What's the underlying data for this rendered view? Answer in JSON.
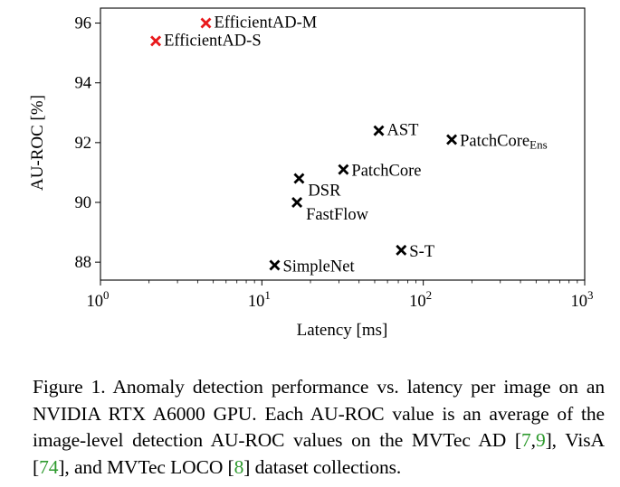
{
  "chart_data": {
    "type": "scatter",
    "xlabel": "Latency [ms]",
    "ylabel": "AU-ROC [%]",
    "xscale": "log",
    "xlim": [
      1,
      1000
    ],
    "ylim": [
      87.4,
      96.5
    ],
    "x_ticks": [
      {
        "value": 1,
        "base": "10",
        "exp": "0"
      },
      {
        "value": 10,
        "base": "10",
        "exp": "1"
      },
      {
        "value": 100,
        "base": "10",
        "exp": "2"
      },
      {
        "value": 1000,
        "base": "10",
        "exp": "3"
      }
    ],
    "y_ticks": [
      88,
      90,
      92,
      94,
      96
    ],
    "grid": false,
    "points": [
      {
        "label": "EfficientAD-M",
        "sub": "",
        "x": 4.5,
        "y": 96.0,
        "color": "#e8191c",
        "anchor": "right-up"
      },
      {
        "label": "EfficientAD-S",
        "sub": "",
        "x": 2.2,
        "y": 95.4,
        "color": "#e8191c",
        "anchor": "right-up"
      },
      {
        "label": "AST",
        "sub": "",
        "x": 53,
        "y": 92.4,
        "color": "#000000",
        "anchor": "right-up"
      },
      {
        "label": "PatchCore",
        "sub": "Ens",
        "x": 150,
        "y": 92.1,
        "color": "#000000",
        "anchor": "right"
      },
      {
        "label": "PatchCore",
        "sub": "",
        "x": 32,
        "y": 91.1,
        "color": "#000000",
        "anchor": "right"
      },
      {
        "label": "DSR",
        "sub": "",
        "x": 17,
        "y": 90.8,
        "color": "#000000",
        "anchor": "right-down"
      },
      {
        "label": "FastFlow",
        "sub": "",
        "x": 16.5,
        "y": 90.0,
        "color": "#000000",
        "anchor": "right-down"
      },
      {
        "label": "S-T",
        "sub": "",
        "x": 73,
        "y": 88.4,
        "color": "#000000",
        "anchor": "right"
      },
      {
        "label": "SimpleNet",
        "sub": "",
        "x": 12,
        "y": 87.9,
        "color": "#000000",
        "anchor": "right"
      }
    ]
  },
  "caption": {
    "prefix": "Figure 1. Anomaly detection performance vs. latency per image on an NVIDIA RTX A6000 GPU. Each AU-ROC value is an average of the image-level detection AU-ROC values on the MVTec AD [",
    "ref_1": "7",
    "sep_1": ",",
    "ref_2": "9",
    "mid_1": "], VisA [",
    "ref_3": "74",
    "mid_2": "], and MVTec LOCO [",
    "ref_4": "8",
    "suffix": "] dataset collections."
  }
}
